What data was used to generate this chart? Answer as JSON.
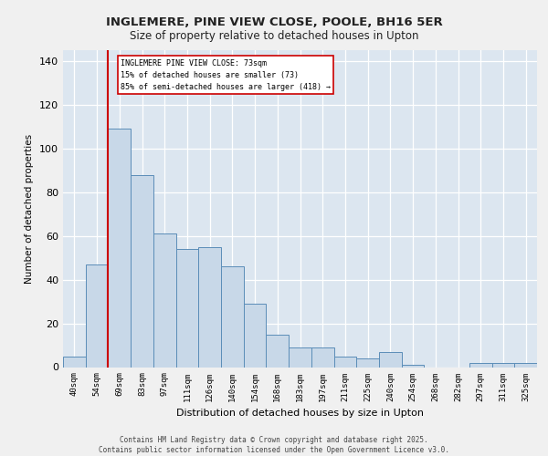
{
  "title1": "INGLEMERE, PINE VIEW CLOSE, POOLE, BH16 5ER",
  "title2": "Size of property relative to detached houses in Upton",
  "xlabel": "Distribution of detached houses by size in Upton",
  "ylabel": "Number of detached properties",
  "categories": [
    "40sqm",
    "54sqm",
    "69sqm",
    "83sqm",
    "97sqm",
    "111sqm",
    "126sqm",
    "140sqm",
    "154sqm",
    "168sqm",
    "183sqm",
    "197sqm",
    "211sqm",
    "225sqm",
    "240sqm",
    "254sqm",
    "268sqm",
    "282sqm",
    "297sqm",
    "311sqm",
    "325sqm"
  ],
  "values": [
    5,
    47,
    109,
    88,
    61,
    54,
    55,
    46,
    29,
    15,
    9,
    9,
    5,
    4,
    7,
    1,
    0,
    0,
    2,
    2,
    2
  ],
  "bar_color": "#c8d8e8",
  "bar_edge_color": "#5b8db8",
  "vline_color": "#cc0000",
  "ylim": [
    0,
    145
  ],
  "yticks": [
    0,
    20,
    40,
    60,
    80,
    100,
    120,
    140
  ],
  "bg_color": "#dce6f0",
  "grid_color": "#ffffff",
  "fig_bg_color": "#f0f0f0",
  "marker_label": "INGLEMERE PINE VIEW CLOSE: 73sqm",
  "annotation_line1": "15% of detached houses are smaller (73)",
  "annotation_line2": "85% of semi-detached houses are larger (418) →",
  "footer_line1": "Contains HM Land Registry data © Crown copyright and database right 2025.",
  "footer_line2": "Contains public sector information licensed under the Open Government Licence v3.0."
}
